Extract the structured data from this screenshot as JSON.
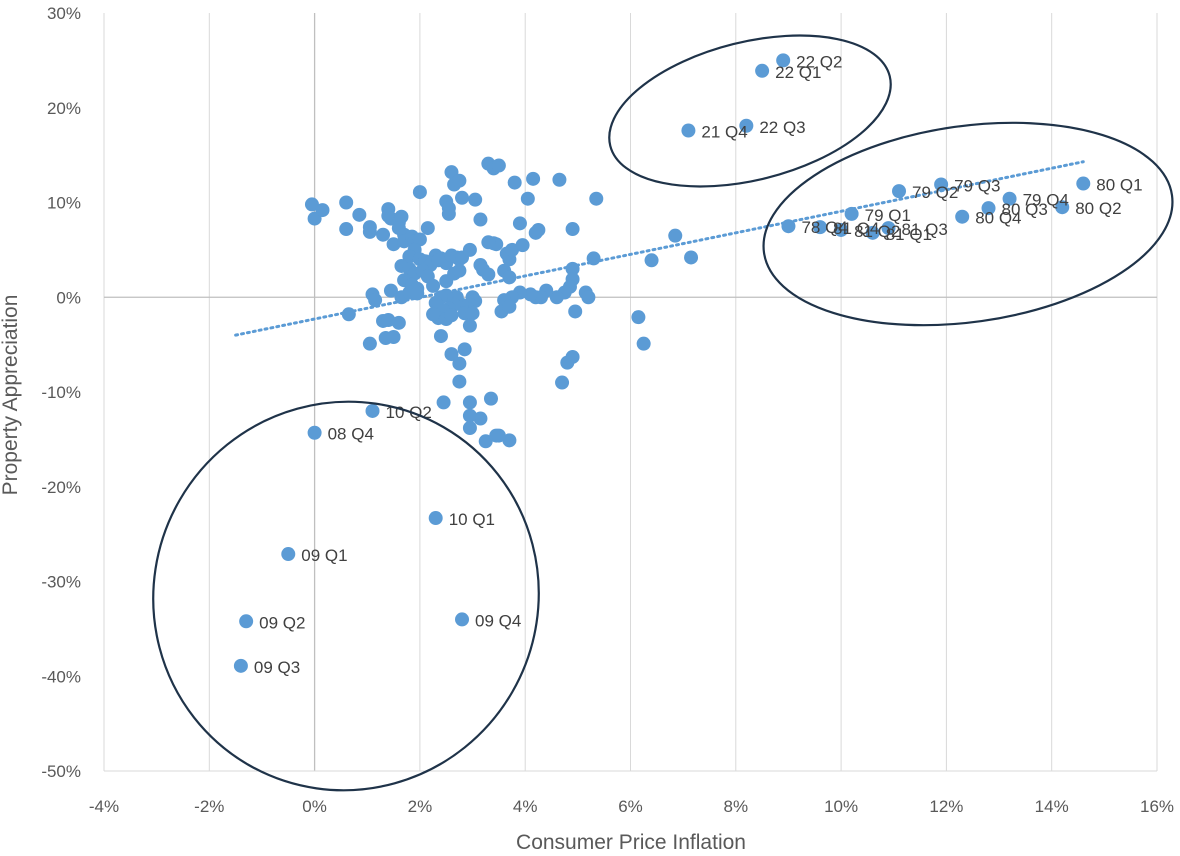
{
  "chart_data": {
    "type": "scatter",
    "title": "",
    "xlabel": "Consumer Price Inflation",
    "ylabel": "Property Appreciation",
    "xlim": [
      -0.04,
      0.16
    ],
    "ylim": [
      -0.5,
      0.3
    ],
    "xticks": [
      -0.04,
      -0.02,
      0,
      0.02,
      0.04,
      0.06,
      0.08,
      0.1,
      0.12,
      0.14,
      0.16
    ],
    "yticks": [
      -0.5,
      -0.4,
      -0.3,
      -0.2,
      -0.1,
      0,
      0.1,
      0.2,
      0.3
    ],
    "xtick_labels": [
      "-4%",
      "-2%",
      "0%",
      "2%",
      "4%",
      "6%",
      "8%",
      "10%",
      "12%",
      "14%",
      "16%"
    ],
    "ytick_labels": [
      "-50%",
      "-40%",
      "-30%",
      "-20%",
      "-10%",
      "0%",
      "10%",
      "20%",
      "30%"
    ],
    "grid": "vertical",
    "legend": "none",
    "marker_color": "#5b9bd5",
    "trendline": {
      "style": "dotted",
      "color": "#5b9bd5",
      "from": [
        -0.015,
        -0.04
      ],
      "to": [
        0.146,
        0.143
      ]
    },
    "highlight_ellipses": {
      "color": "#1f3349",
      "count": 3
    },
    "labeled_points": [
      {
        "label": "22 Q2",
        "x": 0.089,
        "y": 0.25
      },
      {
        "label": "22 Q1",
        "x": 0.085,
        "y": 0.239
      },
      {
        "label": "21 Q4",
        "x": 0.071,
        "y": 0.176
      },
      {
        "label": "22 Q3",
        "x": 0.082,
        "y": 0.181
      },
      {
        "label": "80 Q1",
        "x": 0.146,
        "y": 0.12
      },
      {
        "label": "80 Q2",
        "x": 0.142,
        "y": 0.095
      },
      {
        "label": "79 Q4",
        "x": 0.132,
        "y": 0.104
      },
      {
        "label": "80 Q3",
        "x": 0.128,
        "y": 0.094
      },
      {
        "label": "80 Q4",
        "x": 0.123,
        "y": 0.085
      },
      {
        "label": "79 Q3",
        "x": 0.119,
        "y": 0.119
      },
      {
        "label": "79 Q2",
        "x": 0.111,
        "y": 0.112
      },
      {
        "label": "79 Q1",
        "x": 0.102,
        "y": 0.088
      },
      {
        "label": "81 Q3",
        "x": 0.109,
        "y": 0.073
      },
      {
        "label": "81 Q1",
        "x": 0.106,
        "y": 0.068
      },
      {
        "label": "81 Q2",
        "x": 0.1,
        "y": 0.071
      },
      {
        "label": "78 Q4",
        "x": 0.09,
        "y": 0.075
      },
      {
        "label": "81 Q4",
        "x": 0.096,
        "y": 0.074
      },
      {
        "label": "10 Q2",
        "x": 0.011,
        "y": -0.12
      },
      {
        "label": "08 Q4",
        "x": 0.0,
        "y": -0.143
      },
      {
        "label": "10 Q1",
        "x": 0.023,
        "y": -0.233
      },
      {
        "label": "09 Q1",
        "x": -0.005,
        "y": -0.271
      },
      {
        "label": "09 Q2",
        "x": -0.013,
        "y": -0.342
      },
      {
        "label": "09 Q4",
        "x": 0.028,
        "y": -0.34
      },
      {
        "label": "09 Q3",
        "x": -0.014,
        "y": -0.389
      }
    ],
    "other_points": [
      [
        -0.0005,
        0.098
      ],
      [
        0.0,
        0.083
      ],
      [
        0.0015,
        0.092
      ],
      [
        0.006,
        0.1
      ],
      [
        0.006,
        0.072
      ],
      [
        0.0085,
        0.087
      ],
      [
        0.0105,
        0.069
      ],
      [
        0.0105,
        0.074
      ],
      [
        0.014,
        0.093
      ],
      [
        0.014,
        0.086
      ],
      [
        0.0145,
        0.083
      ],
      [
        0.016,
        0.079
      ],
      [
        0.0165,
        0.085
      ],
      [
        0.016,
        0.073
      ],
      [
        0.013,
        0.066
      ],
      [
        0.015,
        0.056
      ],
      [
        0.017,
        0.066
      ],
      [
        0.017,
        0.059
      ],
      [
        0.0185,
        0.064
      ],
      [
        0.019,
        0.059
      ],
      [
        0.02,
        0.061
      ],
      [
        0.0215,
        0.073
      ],
      [
        0.02,
        0.111
      ],
      [
        0.019,
        0.05
      ],
      [
        0.018,
        0.043
      ],
      [
        0.02,
        0.04
      ],
      [
        0.021,
        0.038
      ],
      [
        0.022,
        0.034
      ],
      [
        0.023,
        0.044
      ],
      [
        0.024,
        0.041
      ],
      [
        0.025,
        0.036
      ],
      [
        0.026,
        0.044
      ],
      [
        0.027,
        0.042
      ],
      [
        0.0275,
        0.04
      ],
      [
        0.028,
        0.042
      ],
      [
        0.0235,
        0.039
      ],
      [
        0.0165,
        0.033
      ],
      [
        0.018,
        0.03
      ],
      [
        0.019,
        0.025
      ],
      [
        0.0205,
        0.028
      ],
      [
        0.0215,
        0.022
      ],
      [
        0.017,
        0.018
      ],
      [
        0.0185,
        0.013
      ],
      [
        0.0195,
        0.009
      ],
      [
        0.0145,
        0.007
      ],
      [
        0.0165,
        0.0
      ],
      [
        0.018,
        0.005
      ],
      [
        0.0195,
        0.004
      ],
      [
        0.0225,
        0.012
      ],
      [
        0.025,
        0.017
      ],
      [
        0.0265,
        0.025
      ],
      [
        0.0275,
        0.028
      ],
      [
        0.0295,
        0.05
      ],
      [
        0.0255,
        0.088
      ],
      [
        0.026,
        0.132
      ],
      [
        0.0265,
        0.119
      ],
      [
        0.0275,
        0.123
      ],
      [
        0.025,
        0.101
      ],
      [
        0.0255,
        0.094
      ],
      [
        0.028,
        0.105
      ],
      [
        0.0305,
        0.103
      ],
      [
        0.0315,
        0.082
      ],
      [
        0.033,
        0.141
      ],
      [
        0.034,
        0.136
      ],
      [
        0.035,
        0.139
      ],
      [
        0.034,
        0.057
      ],
      [
        0.0345,
        0.056
      ],
      [
        0.033,
        0.058
      ],
      [
        0.0315,
        0.034
      ],
      [
        0.032,
        0.029
      ],
      [
        0.033,
        0.024
      ],
      [
        0.036,
        0.028
      ],
      [
        0.037,
        0.04
      ],
      [
        0.0365,
        0.046
      ],
      [
        0.0375,
        0.05
      ],
      [
        0.037,
        0.021
      ],
      [
        0.038,
        0.121
      ],
      [
        0.0405,
        0.104
      ],
      [
        0.0415,
        0.125
      ],
      [
        0.039,
        0.078
      ],
      [
        0.0395,
        0.055
      ],
      [
        0.042,
        0.068
      ],
      [
        0.0425,
        0.071
      ],
      [
        0.0465,
        0.124
      ],
      [
        0.049,
        0.072
      ],
      [
        0.0535,
        0.104
      ],
      [
        0.049,
        0.03
      ],
      [
        0.049,
        0.019
      ],
      [
        0.0485,
        0.011
      ],
      [
        0.0475,
        0.005
      ],
      [
        0.046,
        0.0
      ],
      [
        0.044,
        0.007
      ],
      [
        0.043,
        0.0
      ],
      [
        0.042,
        0.0
      ],
      [
        0.041,
        0.003
      ],
      [
        0.039,
        0.005
      ],
      [
        0.0375,
        0.0
      ],
      [
        0.036,
        -0.003
      ],
      [
        0.0355,
        -0.015
      ],
      [
        0.037,
        -0.01
      ],
      [
        0.03,
        0.0
      ],
      [
        0.0305,
        -0.004
      ],
      [
        0.0295,
        -0.008
      ],
      [
        0.029,
        -0.012
      ],
      [
        0.028,
        -0.008
      ],
      [
        0.027,
        0.0
      ],
      [
        0.0265,
        -0.008
      ],
      [
        0.0255,
        -0.012
      ],
      [
        0.025,
        0.002
      ],
      [
        0.024,
        0.0
      ],
      [
        0.023,
        -0.006
      ],
      [
        0.0245,
        -0.014
      ],
      [
        0.0235,
        -0.022
      ],
      [
        0.025,
        -0.023
      ],
      [
        0.026,
        -0.019
      ],
      [
        0.0285,
        -0.017
      ],
      [
        0.03,
        -0.017
      ],
      [
        0.0295,
        -0.03
      ],
      [
        0.026,
        -0.06
      ],
      [
        0.0275,
        -0.07
      ],
      [
        0.0285,
        -0.055
      ],
      [
        0.0275,
        -0.089
      ],
      [
        0.024,
        -0.041
      ],
      [
        0.0225,
        -0.018
      ],
      [
        0.011,
        0.003
      ],
      [
        0.0115,
        -0.003
      ],
      [
        0.0065,
        -0.018
      ],
      [
        0.013,
        -0.025
      ],
      [
        0.014,
        -0.024
      ],
      [
        0.016,
        -0.027
      ],
      [
        0.0135,
        -0.043
      ],
      [
        0.015,
        -0.042
      ],
      [
        0.0105,
        -0.049
      ],
      [
        0.0495,
        -0.015
      ],
      [
        0.049,
        -0.063
      ],
      [
        0.048,
        -0.069
      ],
      [
        0.047,
        -0.09
      ],
      [
        0.0515,
        0.005
      ],
      [
        0.052,
        0.0
      ],
      [
        0.053,
        0.041
      ],
      [
        0.0615,
        -0.021
      ],
      [
        0.0625,
        -0.049
      ],
      [
        0.064,
        0.039
      ],
      [
        0.0685,
        0.065
      ],
      [
        0.0715,
        0.042
      ],
      [
        0.0245,
        -0.111
      ],
      [
        0.0295,
        -0.111
      ],
      [
        0.0315,
        -0.128
      ],
      [
        0.0295,
        -0.125
      ],
      [
        0.0295,
        -0.138
      ],
      [
        0.0325,
        -0.152
      ],
      [
        0.0335,
        -0.107
      ],
      [
        0.0345,
        -0.146
      ],
      [
        0.037,
        -0.151
      ],
      [
        0.035,
        -0.146
      ]
    ]
  }
}
